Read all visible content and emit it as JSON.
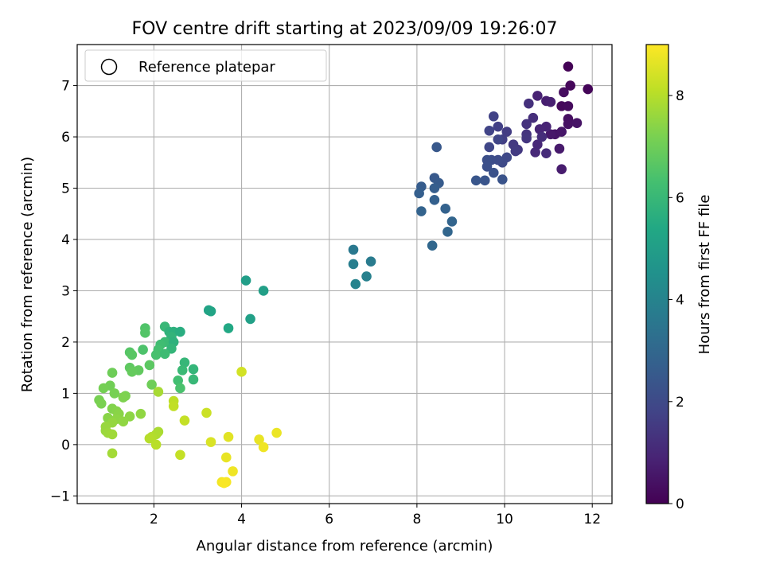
{
  "chart_data": {
    "type": "scatter",
    "title": "FOV centre drift starting at 2023/09/09 19:26:07",
    "xlabel": "Angular distance from reference (arcmin)",
    "ylabel": "Rotation from reference (arcmin)",
    "xlim": [
      0.25,
      12.45
    ],
    "ylim": [
      -1.15,
      7.8
    ],
    "x_ticks": [
      "2",
      "4",
      "6",
      "8",
      "10",
      "12"
    ],
    "y_ticks": [
      "−1",
      "0",
      "1",
      "2",
      "3",
      "4",
      "5",
      "6",
      "7"
    ],
    "grid": true,
    "legend": {
      "placement": "top-left",
      "entries": [
        {
          "label": "Reference platepar",
          "marker": "open-circle"
        }
      ]
    },
    "colorbar": {
      "label": "Hours from first FF file",
      "range": [
        0,
        9
      ],
      "ticks": [
        "0",
        "2",
        "4",
        "6",
        "8"
      ],
      "colormap": "viridis"
    },
    "points": [
      {
        "x": 11.45,
        "y": 7.37,
        "hours": 0.05
      },
      {
        "x": 11.9,
        "y": 6.93,
        "hours": 0.1
      },
      {
        "x": 11.5,
        "y": 7.0,
        "hours": 0.15
      },
      {
        "x": 11.3,
        "y": 6.6,
        "hours": 0.2
      },
      {
        "x": 11.45,
        "y": 6.6,
        "hours": 0.25
      },
      {
        "x": 11.35,
        "y": 6.87,
        "hours": 0.3
      },
      {
        "x": 11.45,
        "y": 6.35,
        "hours": 0.35
      },
      {
        "x": 11.45,
        "y": 6.25,
        "hours": 0.4
      },
      {
        "x": 11.65,
        "y": 6.27,
        "hours": 0.45
      },
      {
        "x": 11.15,
        "y": 6.05,
        "hours": 0.5
      },
      {
        "x": 11.3,
        "y": 6.1,
        "hours": 0.55
      },
      {
        "x": 11.05,
        "y": 6.05,
        "hours": 0.6
      },
      {
        "x": 11.25,
        "y": 5.77,
        "hours": 0.65
      },
      {
        "x": 11.3,
        "y": 5.37,
        "hours": 0.7
      },
      {
        "x": 10.95,
        "y": 6.7,
        "hours": 0.75
      },
      {
        "x": 11.05,
        "y": 6.68,
        "hours": 0.8
      },
      {
        "x": 10.75,
        "y": 6.8,
        "hours": 0.85
      },
      {
        "x": 10.95,
        "y": 6.2,
        "hours": 0.9
      },
      {
        "x": 10.8,
        "y": 6.15,
        "hours": 0.95
      },
      {
        "x": 10.75,
        "y": 5.85,
        "hours": 1.0
      },
      {
        "x": 10.7,
        "y": 5.7,
        "hours": 1.05
      },
      {
        "x": 10.95,
        "y": 5.68,
        "hours": 1.1
      },
      {
        "x": 10.85,
        "y": 6.0,
        "hours": 1.15
      },
      {
        "x": 10.65,
        "y": 6.37,
        "hours": 1.2
      },
      {
        "x": 10.55,
        "y": 6.65,
        "hours": 1.25
      },
      {
        "x": 10.5,
        "y": 6.25,
        "hours": 1.3
      },
      {
        "x": 10.5,
        "y": 6.05,
        "hours": 1.35
      },
      {
        "x": 10.5,
        "y": 5.97,
        "hours": 1.4
      },
      {
        "x": 10.3,
        "y": 5.75,
        "hours": 1.45
      },
      {
        "x": 10.2,
        "y": 5.85,
        "hours": 1.5
      },
      {
        "x": 10.25,
        "y": 5.72,
        "hours": 1.55
      },
      {
        "x": 10.05,
        "y": 6.1,
        "hours": 1.6
      },
      {
        "x": 9.95,
        "y": 5.95,
        "hours": 1.65
      },
      {
        "x": 9.85,
        "y": 6.2,
        "hours": 1.7
      },
      {
        "x": 9.75,
        "y": 6.4,
        "hours": 1.75
      },
      {
        "x": 9.65,
        "y": 6.12,
        "hours": 1.8
      },
      {
        "x": 9.85,
        "y": 5.95,
        "hours": 1.85
      },
      {
        "x": 9.65,
        "y": 5.8,
        "hours": 1.9
      },
      {
        "x": 10.05,
        "y": 5.6,
        "hours": 1.95
      },
      {
        "x": 9.95,
        "y": 5.5,
        "hours": 2.0
      },
      {
        "x": 9.85,
        "y": 5.55,
        "hours": 2.05
      },
      {
        "x": 9.7,
        "y": 5.55,
        "hours": 2.1
      },
      {
        "x": 9.6,
        "y": 5.55,
        "hours": 2.15
      },
      {
        "x": 9.6,
        "y": 5.42,
        "hours": 2.2
      },
      {
        "x": 9.75,
        "y": 5.3,
        "hours": 2.25
      },
      {
        "x": 9.95,
        "y": 5.17,
        "hours": 2.3
      },
      {
        "x": 9.55,
        "y": 5.15,
        "hours": 2.35
      },
      {
        "x": 9.35,
        "y": 5.15,
        "hours": 2.4
      },
      {
        "x": 8.45,
        "y": 5.8,
        "hours": 2.45
      },
      {
        "x": 8.4,
        "y": 5.2,
        "hours": 2.5
      },
      {
        "x": 8.5,
        "y": 5.1,
        "hours": 2.55
      },
      {
        "x": 8.1,
        "y": 5.03,
        "hours": 2.6
      },
      {
        "x": 8.4,
        "y": 5.0,
        "hours": 2.65
      },
      {
        "x": 8.05,
        "y": 4.9,
        "hours": 2.7
      },
      {
        "x": 8.4,
        "y": 4.77,
        "hours": 2.75
      },
      {
        "x": 8.65,
        "y": 4.6,
        "hours": 2.8
      },
      {
        "x": 8.1,
        "y": 4.55,
        "hours": 2.85
      },
      {
        "x": 8.8,
        "y": 4.35,
        "hours": 2.9
      },
      {
        "x": 8.7,
        "y": 4.15,
        "hours": 2.95
      },
      {
        "x": 8.35,
        "y": 3.88,
        "hours": 3.0
      },
      {
        "x": 6.55,
        "y": 3.8,
        "hours": 3.6
      },
      {
        "x": 6.95,
        "y": 3.57,
        "hours": 3.7
      },
      {
        "x": 6.55,
        "y": 3.52,
        "hours": 3.8
      },
      {
        "x": 6.85,
        "y": 3.28,
        "hours": 3.9
      },
      {
        "x": 6.6,
        "y": 3.13,
        "hours": 4.0
      },
      {
        "x": 4.1,
        "y": 3.2,
        "hours": 5.0
      },
      {
        "x": 4.5,
        "y": 3.0,
        "hours": 5.05
      },
      {
        "x": 3.25,
        "y": 2.62,
        "hours": 5.2
      },
      {
        "x": 3.3,
        "y": 2.6,
        "hours": 5.25
      },
      {
        "x": 4.2,
        "y": 2.45,
        "hours": 5.1
      },
      {
        "x": 3.7,
        "y": 2.27,
        "hours": 5.4
      },
      {
        "x": 2.25,
        "y": 2.3,
        "hours": 6.0
      },
      {
        "x": 1.8,
        "y": 2.27,
        "hours": 6.5
      },
      {
        "x": 1.8,
        "y": 2.18,
        "hours": 6.55
      },
      {
        "x": 2.35,
        "y": 2.2,
        "hours": 5.8
      },
      {
        "x": 2.45,
        "y": 2.2,
        "hours": 5.7
      },
      {
        "x": 2.6,
        "y": 2.2,
        "hours": 5.6
      },
      {
        "x": 2.4,
        "y": 2.1,
        "hours": 5.85
      },
      {
        "x": 2.25,
        "y": 2.0,
        "hours": 6.1
      },
      {
        "x": 2.45,
        "y": 2.0,
        "hours": 5.75
      },
      {
        "x": 2.15,
        "y": 1.95,
        "hours": 6.2
      },
      {
        "x": 2.4,
        "y": 1.87,
        "hours": 5.9
      },
      {
        "x": 2.1,
        "y": 1.85,
        "hours": 6.3
      },
      {
        "x": 1.75,
        "y": 1.85,
        "hours": 6.45
      },
      {
        "x": 1.45,
        "y": 1.8,
        "hours": 6.6
      },
      {
        "x": 1.5,
        "y": 1.75,
        "hours": 6.65
      },
      {
        "x": 2.05,
        "y": 1.75,
        "hours": 6.35
      },
      {
        "x": 2.25,
        "y": 1.77,
        "hours": 6.15
      },
      {
        "x": 2.7,
        "y": 1.6,
        "hours": 5.95
      },
      {
        "x": 1.9,
        "y": 1.55,
        "hours": 6.7
      },
      {
        "x": 1.45,
        "y": 1.5,
        "hours": 6.75
      },
      {
        "x": 1.65,
        "y": 1.45,
        "hours": 6.8
      },
      {
        "x": 2.9,
        "y": 1.47,
        "hours": 5.9
      },
      {
        "x": 2.65,
        "y": 1.45,
        "hours": 6.05
      },
      {
        "x": 1.5,
        "y": 1.42,
        "hours": 6.85
      },
      {
        "x": 2.55,
        "y": 1.25,
        "hours": 6.25
      },
      {
        "x": 2.9,
        "y": 1.27,
        "hours": 6.0
      },
      {
        "x": 1.95,
        "y": 1.17,
        "hours": 7.0
      },
      {
        "x": 2.6,
        "y": 1.1,
        "hours": 6.4
      },
      {
        "x": 1.05,
        "y": 1.4,
        "hours": 7.0
      },
      {
        "x": 1.0,
        "y": 1.15,
        "hours": 7.05
      },
      {
        "x": 0.85,
        "y": 1.1,
        "hours": 7.1
      },
      {
        "x": 1.1,
        "y": 1.0,
        "hours": 7.15
      },
      {
        "x": 1.35,
        "y": 0.95,
        "hours": 7.2
      },
      {
        "x": 1.3,
        "y": 0.92,
        "hours": 7.25
      },
      {
        "x": 0.75,
        "y": 0.87,
        "hours": 7.15
      },
      {
        "x": 0.8,
        "y": 0.8,
        "hours": 7.2
      },
      {
        "x": 1.05,
        "y": 0.7,
        "hours": 7.3
      },
      {
        "x": 1.15,
        "y": 0.65,
        "hours": 7.35
      },
      {
        "x": 1.2,
        "y": 0.6,
        "hours": 7.4
      },
      {
        "x": 1.45,
        "y": 0.55,
        "hours": 7.45
      },
      {
        "x": 0.95,
        "y": 0.52,
        "hours": 7.4
      },
      {
        "x": 1.15,
        "y": 0.5,
        "hours": 7.45
      },
      {
        "x": 1.3,
        "y": 0.45,
        "hours": 7.5
      },
      {
        "x": 1.05,
        "y": 0.43,
        "hours": 7.55
      },
      {
        "x": 0.9,
        "y": 0.35,
        "hours": 7.6
      },
      {
        "x": 0.9,
        "y": 0.27,
        "hours": 7.6
      },
      {
        "x": 0.95,
        "y": 0.23,
        "hours": 7.65
      },
      {
        "x": 1.05,
        "y": 0.2,
        "hours": 7.7
      },
      {
        "x": 1.7,
        "y": 0.6,
        "hours": 7.5
      },
      {
        "x": 2.1,
        "y": 1.03,
        "hours": 7.8
      },
      {
        "x": 2.1,
        "y": 0.25,
        "hours": 7.85
      },
      {
        "x": 2.05,
        "y": 0.2,
        "hours": 7.9
      },
      {
        "x": 1.95,
        "y": 0.15,
        "hours": 7.95
      },
      {
        "x": 1.9,
        "y": 0.12,
        "hours": 8.0
      },
      {
        "x": 2.05,
        "y": 0.0,
        "hours": 8.05
      },
      {
        "x": 1.05,
        "y": -0.17,
        "hours": 7.75
      },
      {
        "x": 2.45,
        "y": 0.85,
        "hours": 8.1
      },
      {
        "x": 2.45,
        "y": 0.75,
        "hours": 8.15
      },
      {
        "x": 2.7,
        "y": 0.47,
        "hours": 8.2
      },
      {
        "x": 2.6,
        "y": -0.2,
        "hours": 8.2
      },
      {
        "x": 3.2,
        "y": 0.62,
        "hours": 8.3
      },
      {
        "x": 3.3,
        "y": 0.05,
        "hours": 8.5
      },
      {
        "x": 4.0,
        "y": 1.42,
        "hours": 8.4
      },
      {
        "x": 3.7,
        "y": 0.15,
        "hours": 8.6
      },
      {
        "x": 4.4,
        "y": 0.1,
        "hours": 8.7
      },
      {
        "x": 4.8,
        "y": 0.23,
        "hours": 8.75
      },
      {
        "x": 4.5,
        "y": -0.05,
        "hours": 8.8
      },
      {
        "x": 3.65,
        "y": -0.25,
        "hours": 8.7
      },
      {
        "x": 3.8,
        "y": -0.52,
        "hours": 8.8
      },
      {
        "x": 3.55,
        "y": -0.73,
        "hours": 8.85
      },
      {
        "x": 3.65,
        "y": -0.73,
        "hours": 8.9
      },
      {
        "x": 3.6,
        "y": -0.75,
        "hours": 8.95
      }
    ]
  }
}
